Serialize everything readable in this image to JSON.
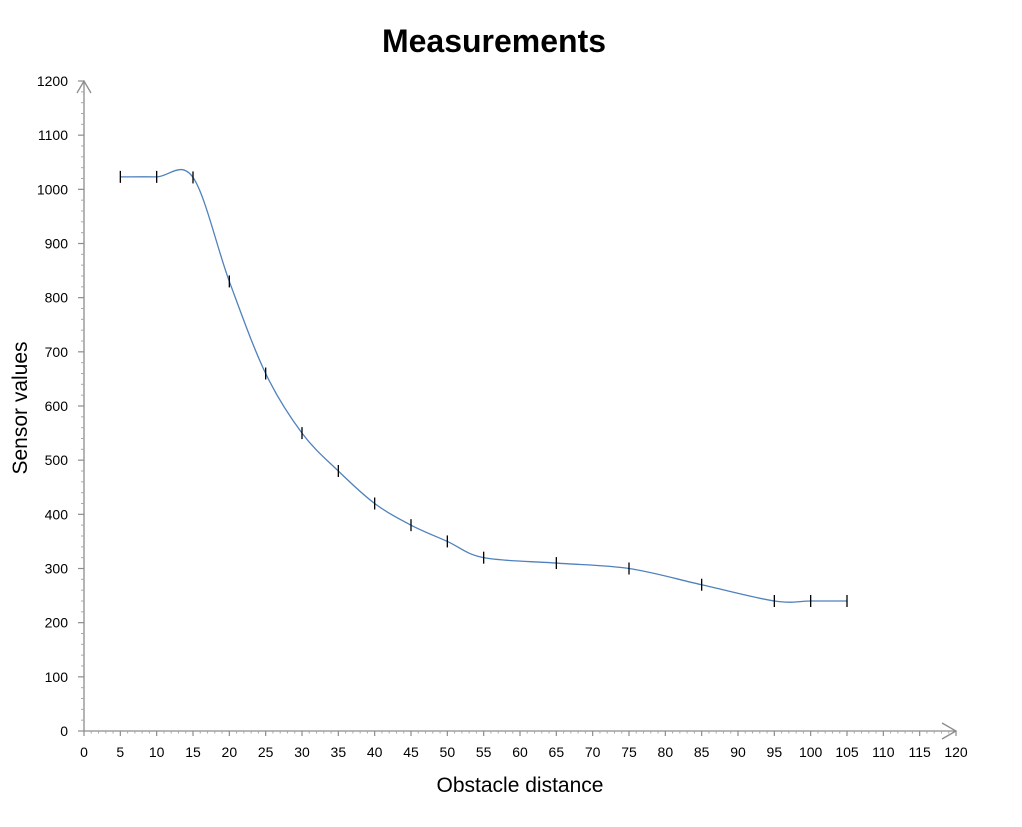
{
  "chart_data": {
    "type": "scatter",
    "title": "Measurements",
    "xlabel": "Obstacle distance",
    "ylabel": "Sensor values",
    "xlim": [
      0,
      120
    ],
    "ylim": [
      0,
      1200
    ],
    "x_ticks": [
      0,
      5,
      10,
      15,
      20,
      25,
      30,
      35,
      40,
      45,
      50,
      55,
      60,
      65,
      70,
      75,
      80,
      85,
      90,
      95,
      100,
      105,
      110,
      115,
      120
    ],
    "y_ticks": [
      0,
      100,
      200,
      300,
      400,
      500,
      600,
      700,
      800,
      900,
      1000,
      1100,
      1200
    ],
    "grid": false,
    "smooth_line": true,
    "marker": "vertical-dash",
    "series": [
      {
        "color": "#4f81bd",
        "points": [
          {
            "x": 5,
            "y": 1023
          },
          {
            "x": 10,
            "y": 1023
          },
          {
            "x": 15,
            "y": 1022
          },
          {
            "x": 20,
            "y": 830
          },
          {
            "x": 25,
            "y": 660
          },
          {
            "x": 30,
            "y": 550
          },
          {
            "x": 35,
            "y": 480
          },
          {
            "x": 40,
            "y": 420
          },
          {
            "x": 45,
            "y": 380
          },
          {
            "x": 50,
            "y": 350
          },
          {
            "x": 55,
            "y": 320
          },
          {
            "x": 65,
            "y": 310
          },
          {
            "x": 75,
            "y": 300
          },
          {
            "x": 85,
            "y": 270
          },
          {
            "x": 95,
            "y": 240
          },
          {
            "x": 100,
            "y": 240
          },
          {
            "x": 105,
            "y": 240
          }
        ]
      }
    ]
  }
}
